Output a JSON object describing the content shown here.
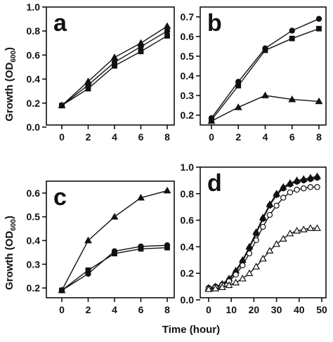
{
  "figure": {
    "ylabel_top": "Growth (OD600)",
    "ylabel_bottom": "Growth (OD600)",
    "xlabel": "Time (hour)"
  },
  "chart_data": [
    {
      "panel": "a",
      "type": "line",
      "xlim": [
        0,
        8
      ],
      "ylim": [
        0.0,
        1.0
      ],
      "xticks": [
        0,
        2,
        4,
        6,
        8
      ],
      "yticks": [
        0.0,
        0.2,
        0.4,
        0.6,
        0.8,
        1.0
      ],
      "ytick_labels": [
        "0.0",
        "0.2",
        "0.4",
        "0.6",
        "0.8",
        "1.0"
      ],
      "series": [
        {
          "marker": "triangle",
          "filled": true,
          "x": [
            0,
            2,
            4,
            6,
            8
          ],
          "y": [
            0.18,
            0.38,
            0.58,
            0.7,
            0.84
          ]
        },
        {
          "marker": "circle",
          "filled": true,
          "x": [
            0,
            2,
            4,
            6,
            8
          ],
          "y": [
            0.18,
            0.35,
            0.54,
            0.67,
            0.8
          ]
        },
        {
          "marker": "square",
          "filled": true,
          "x": [
            0,
            2,
            4,
            6,
            8
          ],
          "y": [
            0.18,
            0.32,
            0.51,
            0.63,
            0.76
          ]
        }
      ]
    },
    {
      "panel": "b",
      "type": "line",
      "xlim": [
        0,
        8
      ],
      "ylim": [
        0.15,
        0.75
      ],
      "xticks": [
        0,
        2,
        4,
        6,
        8
      ],
      "yticks": [
        0.2,
        0.3,
        0.4,
        0.5,
        0.6,
        0.7
      ],
      "ytick_labels": [
        "0.2",
        "0.3",
        "0.4",
        "0.5",
        "0.6",
        "0.7"
      ],
      "series": [
        {
          "marker": "circle",
          "filled": true,
          "x": [
            0,
            2,
            4,
            6,
            8
          ],
          "y": [
            0.185,
            0.37,
            0.54,
            0.63,
            0.69
          ]
        },
        {
          "marker": "square",
          "filled": true,
          "x": [
            0,
            2,
            4,
            6,
            8
          ],
          "y": [
            0.175,
            0.35,
            0.53,
            0.59,
            0.64
          ]
        },
        {
          "marker": "triangle",
          "filled": true,
          "x": [
            0,
            2,
            4,
            6,
            8
          ],
          "y": [
            0.17,
            0.24,
            0.3,
            0.28,
            0.27
          ]
        }
      ]
    },
    {
      "panel": "c",
      "type": "line",
      "xlim": [
        0,
        8
      ],
      "ylim": [
        0.15,
        0.65
      ],
      "xticks": [
        0,
        2,
        4,
        6,
        8
      ],
      "yticks": [
        0.2,
        0.3,
        0.4,
        0.5,
        0.6
      ],
      "ytick_labels": [
        "0.2",
        "0.3",
        "0.4",
        "0.5",
        "0.6"
      ],
      "series": [
        {
          "marker": "triangle",
          "filled": true,
          "x": [
            0,
            2,
            4,
            6,
            8
          ],
          "y": [
            0.19,
            0.4,
            0.5,
            0.58,
            0.61
          ]
        },
        {
          "marker": "circle",
          "filled": true,
          "x": [
            0,
            2,
            4,
            6,
            8
          ],
          "y": [
            0.19,
            0.26,
            0.355,
            0.375,
            0.38
          ]
        },
        {
          "marker": "square",
          "filled": true,
          "x": [
            0,
            2,
            4,
            6,
            8
          ],
          "y": [
            0.19,
            0.275,
            0.345,
            0.365,
            0.37
          ]
        }
      ]
    },
    {
      "panel": "d",
      "type": "line",
      "xlim": [
        0,
        50
      ],
      "ylim": [
        0.0,
        1.0
      ],
      "xticks": [
        0,
        10,
        20,
        30,
        40,
        50
      ],
      "yticks": [
        0.0,
        0.2,
        0.4,
        0.6,
        0.8,
        1.0
      ],
      "ytick_labels": [
        "0.0",
        "0.2",
        "0.4",
        "0.6",
        "0.8",
        "1.0"
      ],
      "series": [
        {
          "marker": "triangle",
          "filled": true,
          "x": [
            0,
            3,
            6,
            9,
            12,
            15,
            18,
            21,
            24,
            27,
            30,
            33,
            36,
            39,
            42,
            45,
            48
          ],
          "y": [
            0.09,
            0.1,
            0.12,
            0.16,
            0.22,
            0.3,
            0.4,
            0.51,
            0.62,
            0.72,
            0.8,
            0.85,
            0.88,
            0.9,
            0.91,
            0.92,
            0.93
          ]
        },
        {
          "marker": "circle",
          "filled": true,
          "x": [
            0,
            3,
            6,
            9,
            12,
            15,
            18,
            21,
            24,
            27,
            30,
            33,
            36,
            39,
            42,
            45,
            48
          ],
          "y": [
            0.09,
            0.1,
            0.115,
            0.15,
            0.21,
            0.29,
            0.39,
            0.5,
            0.61,
            0.71,
            0.79,
            0.84,
            0.87,
            0.89,
            0.9,
            0.91,
            0.92
          ]
        },
        {
          "marker": "circle",
          "filled": false,
          "x": [
            0,
            3,
            6,
            9,
            12,
            15,
            18,
            21,
            24,
            27,
            30,
            33,
            36,
            39,
            42,
            45,
            48
          ],
          "y": [
            0.085,
            0.095,
            0.11,
            0.14,
            0.19,
            0.26,
            0.35,
            0.45,
            0.55,
            0.64,
            0.71,
            0.77,
            0.81,
            0.83,
            0.84,
            0.85,
            0.85
          ]
        },
        {
          "marker": "triangle",
          "filled": false,
          "x": [
            0,
            3,
            6,
            9,
            12,
            15,
            18,
            21,
            24,
            27,
            30,
            33,
            36,
            39,
            42,
            45,
            48
          ],
          "y": [
            0.08,
            0.085,
            0.095,
            0.11,
            0.13,
            0.16,
            0.2,
            0.25,
            0.31,
            0.37,
            0.42,
            0.46,
            0.5,
            0.52,
            0.53,
            0.54,
            0.54
          ]
        }
      ]
    }
  ]
}
